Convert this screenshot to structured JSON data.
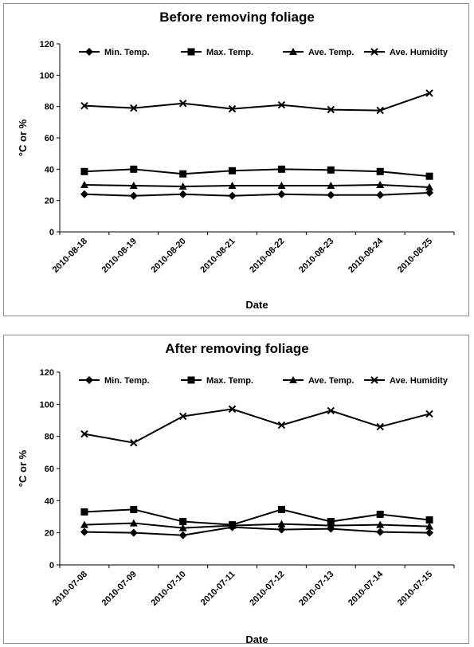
{
  "chart_data": [
    {
      "type": "line",
      "title": "Before removing foliage",
      "xlabel": "Date",
      "ylabel": "°C or %",
      "ylim": [
        0,
        120
      ],
      "yticks": [
        0,
        20,
        40,
        60,
        80,
        100,
        120
      ],
      "categories": [
        "2010-08-18",
        "2010-08-19",
        "2010-08-20",
        "2010-08-21",
        "2010-08-22",
        "2010-08-23",
        "2010-08-24",
        "2010-08-25"
      ],
      "legend_position": "top",
      "grid": false,
      "series": [
        {
          "name": "Min. Temp.",
          "marker": "diamond",
          "values": [
            24,
            23,
            24,
            23,
            24,
            23.5,
            23.5,
            25
          ]
        },
        {
          "name": "Max. Temp.",
          "marker": "square",
          "values": [
            38.5,
            40,
            37,
            39,
            40,
            39.5,
            38.5,
            35.5
          ]
        },
        {
          "name": "Ave. Temp.",
          "marker": "triangle",
          "values": [
            30,
            29.5,
            29,
            29.5,
            29.5,
            29.5,
            30,
            28.5
          ]
        },
        {
          "name": "Ave. Humidity",
          "marker": "x",
          "values": [
            80.5,
            79,
            82,
            78.5,
            81,
            78,
            77.5,
            88.5
          ]
        }
      ]
    },
    {
      "type": "line",
      "title": "After removing foliage",
      "xlabel": "Date",
      "ylabel": "°C or %",
      "ylim": [
        0,
        120
      ],
      "yticks": [
        0,
        20,
        40,
        60,
        80,
        100,
        120
      ],
      "categories": [
        "2010-07-08",
        "2010-07-09",
        "2010-07-10",
        "2010-07-11",
        "2010-07-12",
        "2010-07-13",
        "2010-07-14",
        "2010-07-15"
      ],
      "legend_position": "top",
      "grid": false,
      "series": [
        {
          "name": "Min. Temp.",
          "marker": "diamond",
          "values": [
            20.5,
            20,
            18.5,
            23.5,
            22,
            22.5,
            20.5,
            20
          ]
        },
        {
          "name": "Max. Temp.",
          "marker": "square",
          "values": [
            33,
            34.5,
            27,
            25,
            34.5,
            27,
            31.5,
            28
          ]
        },
        {
          "name": "Ave. Temp.",
          "marker": "triangle",
          "values": [
            25,
            26,
            23,
            24.5,
            25.5,
            24.5,
            25,
            24
          ]
        },
        {
          "name": "Ave. Humidity",
          "marker": "x",
          "values": [
            81.5,
            76,
            92.5,
            97,
            87,
            96,
            86,
            94
          ]
        }
      ]
    }
  ]
}
